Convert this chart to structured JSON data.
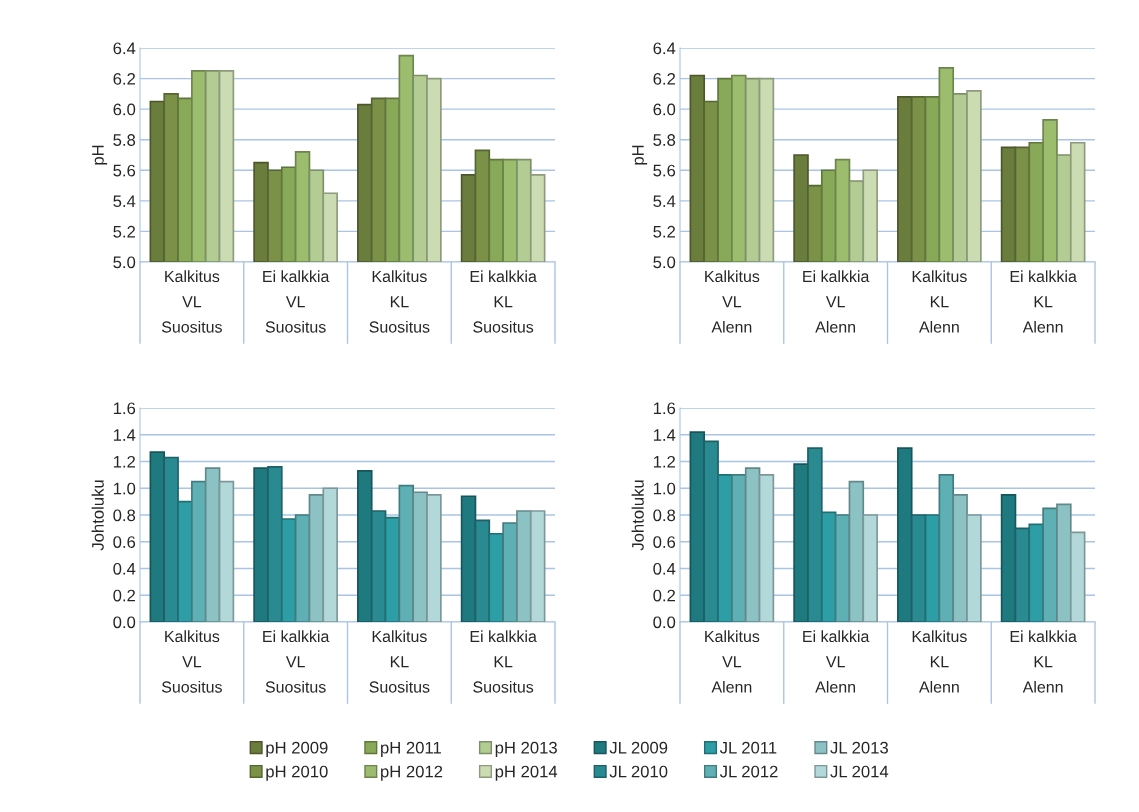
{
  "chart_data": [
    {
      "type": "bar",
      "ylabel": "pH",
      "categories": [
        "Kalkitus\nVL\nSuositus",
        "Ei kalkkia\nVL\nSuositus",
        "Kalkitus\nKL\nSuositus",
        "Ei kalkkia\nKL\nSuositus"
      ],
      "ylim": [
        5.0,
        6.4
      ],
      "yticks": [
        {
          "value": 5.0,
          "label": "5.0"
        },
        {
          "value": 5.2,
          "label": "5.2"
        },
        {
          "value": 5.4,
          "label": "5.4"
        },
        {
          "value": 5.6,
          "label": "5.6"
        },
        {
          "value": 5.8,
          "label": "5.8"
        },
        {
          "value": 6.0,
          "label": "6.0"
        },
        {
          "value": 6.2,
          "label": "6.2"
        },
        {
          "value": 6.4,
          "label": "6.4"
        }
      ],
      "grid": "y",
      "legend": "bottom",
      "series": [
        {
          "name": "pH 2009",
          "color": "#6b7d3c",
          "values": [
            6.05,
            5.65,
            6.03,
            5.57
          ]
        },
        {
          "name": "pH 2010",
          "color": "#7a9147",
          "values": [
            6.1,
            5.6,
            6.07,
            5.73
          ]
        },
        {
          "name": "pH 2011",
          "color": "#88a957",
          "values": [
            6.07,
            5.62,
            6.07,
            5.67
          ]
        },
        {
          "name": "pH 2012",
          "color": "#9cbc6e",
          "values": [
            6.25,
            5.72,
            6.35,
            5.67
          ]
        },
        {
          "name": "pH 2013",
          "color": "#b3cc94",
          "values": [
            6.25,
            5.6,
            6.22,
            5.67
          ]
        },
        {
          "name": "pH 2014",
          "color": "#cbdcb2",
          "values": [
            6.25,
            5.45,
            6.2,
            5.57
          ]
        }
      ]
    },
    {
      "type": "bar",
      "ylabel": "pH",
      "categories": [
        "Kalkitus\nVL\nAlenn",
        "Ei kalkkia\nVL\nAlenn",
        "Kalkitus\nKL\nAlenn",
        "Ei kalkkia\nKL\nAlenn"
      ],
      "ylim": [
        5.0,
        6.4
      ],
      "yticks": [
        {
          "value": 5.0,
          "label": "5.0"
        },
        {
          "value": 5.2,
          "label": "5.2"
        },
        {
          "value": 5.4,
          "label": "5.4"
        },
        {
          "value": 5.6,
          "label": "5.6"
        },
        {
          "value": 5.8,
          "label": "5.8"
        },
        {
          "value": 6.0,
          "label": "6.0"
        },
        {
          "value": 6.2,
          "label": "6.2"
        },
        {
          "value": 6.4,
          "label": "6.4"
        }
      ],
      "grid": "y",
      "series": [
        {
          "color": "#6b7d3c",
          "values": [
            6.22,
            5.7,
            6.08,
            5.75
          ]
        },
        {
          "color": "#7a9147",
          "values": [
            6.05,
            5.5,
            6.08,
            5.75
          ]
        },
        {
          "color": "#88a957",
          "values": [
            6.2,
            5.6,
            6.08,
            5.78
          ]
        },
        {
          "color": "#9cbc6e",
          "values": [
            6.22,
            5.67,
            6.27,
            5.93
          ]
        },
        {
          "color": "#b3cc94",
          "values": [
            6.2,
            5.53,
            6.1,
            5.7
          ]
        },
        {
          "color": "#cbdcb2",
          "values": [
            6.2,
            5.6,
            6.12,
            5.78
          ]
        }
      ]
    },
    {
      "type": "bar",
      "ylabel": "Johtoluku",
      "categories": [
        "Kalkitus\nVL\nSuositus",
        "Ei kalkkia\nVL\nSuositus",
        "Kalkitus\nKL\nSuositus",
        "Ei kalkkia\nKL\nSuositus"
      ],
      "ylim": [
        0.0,
        1.6
      ],
      "yticks": [
        {
          "value": 0.0,
          "label": "0.0"
        },
        {
          "value": 0.2,
          "label": "0.2"
        },
        {
          "value": 0.4,
          "label": "0.4"
        },
        {
          "value": 0.6,
          "label": "0.6"
        },
        {
          "value": 0.8,
          "label": "0.8"
        },
        {
          "value": 1.0,
          "label": "1.0"
        },
        {
          "value": 1.2,
          "label": "1.2"
        },
        {
          "value": 1.4,
          "label": "1.4"
        },
        {
          "value": 1.6,
          "label": "1.6"
        }
      ],
      "grid": "y",
      "legend": "bottom",
      "series": [
        {
          "name": "JL 2009",
          "color": "#1f7a80",
          "values": [
            1.27,
            1.15,
            1.13,
            0.94
          ]
        },
        {
          "name": "JL 2010",
          "color": "#2a8a92",
          "values": [
            1.23,
            1.16,
            0.83,
            0.76
          ]
        },
        {
          "name": "JL 2011",
          "color": "#2e9ea6",
          "values": [
            0.9,
            0.77,
            0.78,
            0.66
          ]
        },
        {
          "name": "JL 2012",
          "color": "#5fb0b5",
          "values": [
            1.05,
            0.8,
            1.02,
            0.74
          ]
        },
        {
          "name": "JL 2013",
          "color": "#8cc2c4",
          "values": [
            1.15,
            0.95,
            0.97,
            0.83
          ]
        },
        {
          "name": "JL 2014",
          "color": "#b3d8da",
          "values": [
            1.05,
            1.0,
            0.95,
            0.83
          ]
        }
      ]
    },
    {
      "type": "bar",
      "ylabel": "Johtoluku",
      "categories": [
        "Kalkitus\nVL\nAlenn",
        "Ei kalkkia\nVL\nAlenn",
        "Kalkitus\nKL\nAlenn",
        "Ei kalkkia\nKL\nAlenn"
      ],
      "ylim": [
        0.0,
        1.6
      ],
      "yticks": [
        {
          "value": 0.0,
          "label": "0.0"
        },
        {
          "value": 0.2,
          "label": "0.2"
        },
        {
          "value": 0.4,
          "label": "0.4"
        },
        {
          "value": 0.6,
          "label": "0.6"
        },
        {
          "value": 0.8,
          "label": "0.8"
        },
        {
          "value": 1.0,
          "label": "1.0"
        },
        {
          "value": 1.2,
          "label": "1.2"
        },
        {
          "value": 1.4,
          "label": "1.4"
        },
        {
          "value": 1.6,
          "label": "1.6"
        }
      ],
      "grid": "y",
      "series": [
        {
          "color": "#1f7a80",
          "values": [
            1.42,
            1.18,
            1.3,
            0.95
          ]
        },
        {
          "color": "#2a8a92",
          "values": [
            1.35,
            1.3,
            0.8,
            0.7
          ]
        },
        {
          "color": "#2e9ea6",
          "values": [
            1.1,
            0.82,
            0.8,
            0.73
          ]
        },
        {
          "color": "#5fb0b5",
          "values": [
            1.1,
            0.8,
            1.1,
            0.85
          ]
        },
        {
          "color": "#8cc2c4",
          "values": [
            1.15,
            1.05,
            0.95,
            0.88
          ]
        },
        {
          "color": "#b3d8da",
          "values": [
            1.1,
            0.8,
            0.8,
            0.67
          ]
        }
      ]
    }
  ]
}
